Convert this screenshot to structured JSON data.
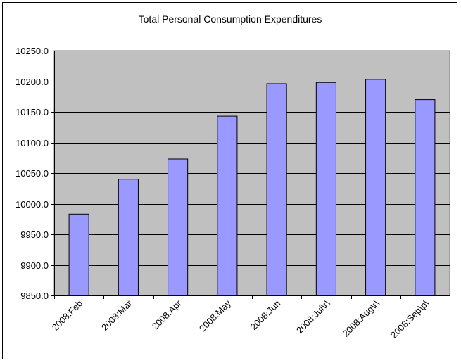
{
  "chart_data": {
    "type": "bar",
    "title": "Total Personal Consumption Expenditures",
    "xlabel": "",
    "ylabel": "",
    "categories": [
      "2008:Feb",
      "2008:Mar",
      "2008:Apr",
      "2008:May",
      "2008:Jun",
      "2008:Jul\\r\\",
      "2008:Aug\\r\\",
      "2008:Sep\\p\\"
    ],
    "values": [
      9983.0,
      10040.0,
      10073.0,
      10143.0,
      10196.0,
      10198.0,
      10203.0,
      10170.0
    ],
    "ylim": [
      9850,
      10250
    ],
    "yticks": [
      "9850.0",
      "9900.0",
      "9950.0",
      "10000.0",
      "10050.0",
      "10100.0",
      "10150.0",
      "10200.0",
      "10250.0"
    ],
    "grid": true,
    "legend": "none",
    "colors": {
      "bar_fill": "#9999ff",
      "bar_stroke": "#000000",
      "plot_background": "#c0c0c0",
      "gridline": "#000000"
    }
  }
}
